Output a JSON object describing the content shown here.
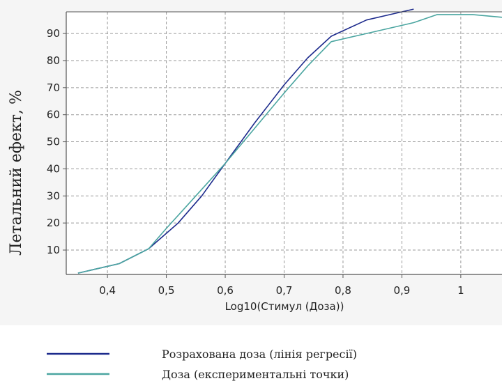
{
  "chart_data": {
    "type": "line",
    "title": "",
    "xlabel": "Log10(Стимул (Доза))",
    "ylabel": "Летальний ефект, %",
    "xlim": [
      0.33,
      1.07
    ],
    "ylim": [
      1,
      98
    ],
    "x_ticks": [
      "0,4",
      "0,5",
      "0,6",
      "0,7",
      "0,8",
      "0,9",
      "1"
    ],
    "x_tick_values": [
      0.4,
      0.5,
      0.6,
      0.7,
      0.8,
      0.9,
      1.0
    ],
    "y_ticks": [
      "10",
      "20",
      "30",
      "40",
      "50",
      "60",
      "70",
      "80",
      "90"
    ],
    "y_tick_values": [
      10,
      20,
      30,
      40,
      50,
      60,
      70,
      80,
      90
    ],
    "grid": true,
    "legend_position": "bottom",
    "series": [
      {
        "name": "Розрахована доза (лінія регресії)",
        "color": "#1c2a8c",
        "points": [
          [
            0.35,
            1.5
          ],
          [
            0.42,
            5
          ],
          [
            0.47,
            10.5
          ],
          [
            0.52,
            20
          ],
          [
            0.56,
            30
          ],
          [
            0.6,
            42
          ],
          [
            0.65,
            57
          ],
          [
            0.7,
            71
          ],
          [
            0.74,
            81
          ],
          [
            0.78,
            89
          ],
          [
            0.84,
            95
          ],
          [
            0.88,
            97
          ],
          [
            0.92,
            99
          ]
        ]
      },
      {
        "name": "Доза (експериментальні точки)",
        "color": "#4aa5a0",
        "points": [
          [
            0.35,
            1.5
          ],
          [
            0.42,
            5
          ],
          [
            0.47,
            10.5
          ],
          [
            0.5,
            18
          ],
          [
            0.55,
            30
          ],
          [
            0.6,
            42
          ],
          [
            0.65,
            55
          ],
          [
            0.7,
            68
          ],
          [
            0.74,
            78
          ],
          [
            0.78,
            87
          ],
          [
            0.84,
            90
          ],
          [
            0.92,
            94
          ],
          [
            0.96,
            97
          ],
          [
            1.02,
            97
          ],
          [
            1.07,
            96
          ]
        ]
      }
    ]
  }
}
